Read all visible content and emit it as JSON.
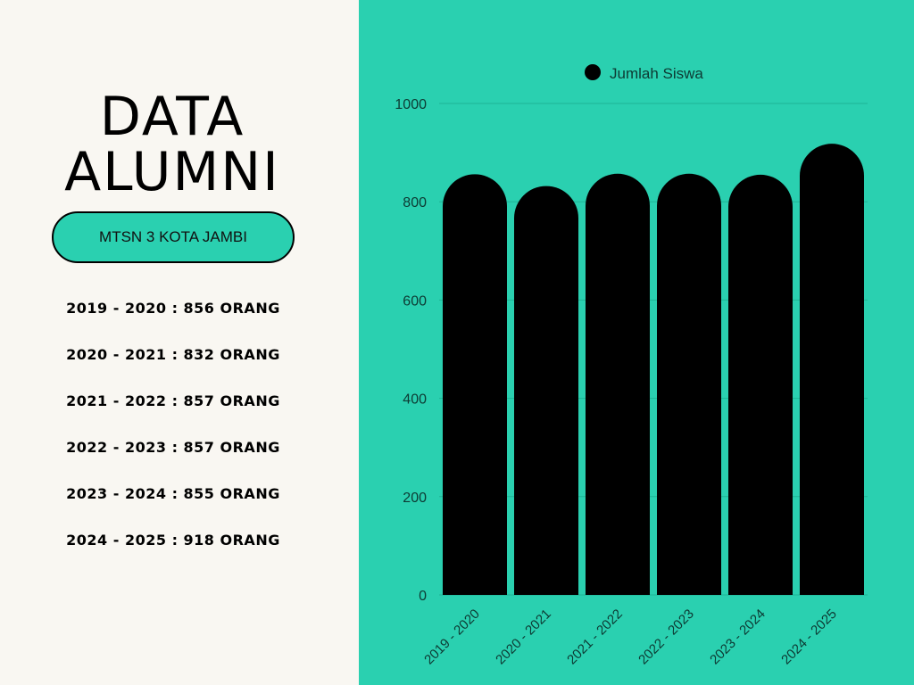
{
  "left": {
    "title_line1": "DATA",
    "title_line2": "ALUMNI",
    "school": "MTSN 3 KOTA JAMBI",
    "items": [
      "2019 - 2020 : 856 ORANG",
      "2020 - 2021 : 832 ORANG",
      "2021 - 2022 : 857 ORANG",
      "2022 - 2023 : 857 ORANG",
      "2023 - 2024 : 855 ORANG",
      "2024 - 2025 : 918 ORANG"
    ]
  },
  "colors": {
    "panel": "#2ad0b0",
    "left_bg": "#f9f7f2",
    "bar": "#000000"
  },
  "chart_data": {
    "type": "bar",
    "categories": [
      "2019 - 2020",
      "2020 - 2021",
      "2021 - 2022",
      "2022 - 2023",
      "2023 - 2024",
      "2024 - 2025"
    ],
    "series": [
      {
        "name": "Jumlah Siswa",
        "values": [
          856,
          832,
          857,
          857,
          855,
          918
        ]
      }
    ],
    "ylim": [
      0,
      1000
    ],
    "yticks": [
      0,
      200,
      400,
      600,
      800,
      1000
    ],
    "grid": true,
    "legend": "top",
    "bar_style": "rounded-top"
  }
}
